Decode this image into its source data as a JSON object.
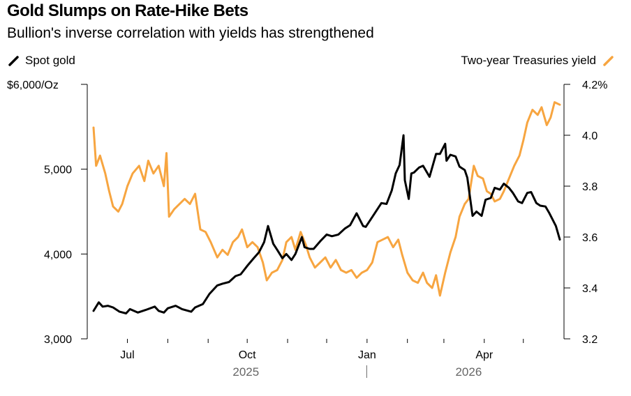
{
  "title": "Gold Slumps on Rate-Hike Bets",
  "subtitle": "Bullion's inverse correlation with yields has strengthened",
  "legend": {
    "left": {
      "label": "Spot gold",
      "color": "#000000",
      "icon": "black-slash-icon"
    },
    "right": {
      "label": "Two-year Treasuries yield",
      "color": "#f7a540",
      "icon": "orange-slash-icon"
    }
  },
  "chart_data": {
    "type": "line",
    "grid": false,
    "legend_position": "top",
    "x_range": [
      "2025-06-05",
      "2026-05-29"
    ],
    "x_ticks": [
      {
        "date": "2025-07-01",
        "label": "Jul"
      },
      {
        "date": "2025-08-01",
        "label": ""
      },
      {
        "date": "2025-09-01",
        "label": ""
      },
      {
        "date": "2025-10-01",
        "label": "Oct"
      },
      {
        "date": "2025-11-01",
        "label": ""
      },
      {
        "date": "2025-12-01",
        "label": ""
      },
      {
        "date": "2026-01-01",
        "label": "Jan"
      },
      {
        "date": "2026-02-01",
        "label": ""
      },
      {
        "date": "2026-03-01",
        "label": ""
      },
      {
        "date": "2026-04-01",
        "label": "Apr"
      },
      {
        "date": "2026-05-01",
        "label": ""
      }
    ],
    "year_labels": [
      {
        "date": "2025-09-30",
        "label": "2025"
      },
      {
        "date": "2026-03-20",
        "label": "2026"
      }
    ],
    "year_divider_date": "2026-01-01",
    "y_left": {
      "unit_label": "$6,000/Oz",
      "ticks": [
        3000,
        4000,
        5000,
        6000
      ],
      "tick_labels": [
        "3,000",
        "4,000",
        "5,000",
        ""
      ],
      "range": [
        3000,
        6000
      ]
    },
    "y_right": {
      "ticks": [
        3.2,
        3.4,
        3.6,
        3.8,
        4.0,
        4.2
      ],
      "tick_labels": [
        "3.2",
        "3.4",
        "3.6",
        "3.8",
        "4.0",
        "4.2%"
      ],
      "range": [
        3.2,
        4.2
      ]
    },
    "series": [
      {
        "name": "Spot gold",
        "axis": "left",
        "color": "#000000",
        "points": [
          [
            "2025-06-05",
            3330
          ],
          [
            "2025-06-09",
            3430
          ],
          [
            "2025-06-12",
            3380
          ],
          [
            "2025-06-16",
            3390
          ],
          [
            "2025-06-20",
            3370
          ],
          [
            "2025-06-25",
            3320
          ],
          [
            "2025-06-30",
            3300
          ],
          [
            "2025-07-03",
            3350
          ],
          [
            "2025-07-09",
            3310
          ],
          [
            "2025-07-15",
            3340
          ],
          [
            "2025-07-22",
            3380
          ],
          [
            "2025-07-25",
            3330
          ],
          [
            "2025-07-29",
            3310
          ],
          [
            "2025-08-01",
            3360
          ],
          [
            "2025-08-07",
            3390
          ],
          [
            "2025-08-12",
            3350
          ],
          [
            "2025-08-19",
            3320
          ],
          [
            "2025-08-22",
            3370
          ],
          [
            "2025-08-28",
            3410
          ],
          [
            "2025-09-02",
            3530
          ],
          [
            "2025-09-08",
            3630
          ],
          [
            "2025-09-12",
            3650
          ],
          [
            "2025-09-17",
            3670
          ],
          [
            "2025-09-22",
            3740
          ],
          [
            "2025-09-26",
            3760
          ],
          [
            "2025-10-01",
            3860
          ],
          [
            "2025-10-06",
            3950
          ],
          [
            "2025-10-10",
            4020
          ],
          [
            "2025-10-14",
            4140
          ],
          [
            "2025-10-17",
            4330
          ],
          [
            "2025-10-21",
            4120
          ],
          [
            "2025-10-24",
            4050
          ],
          [
            "2025-10-28",
            3950
          ],
          [
            "2025-10-31",
            4000
          ],
          [
            "2025-11-04",
            3930
          ],
          [
            "2025-11-07",
            4000
          ],
          [
            "2025-11-12",
            4200
          ],
          [
            "2025-11-14",
            4080
          ],
          [
            "2025-11-18",
            4060
          ],
          [
            "2025-11-21",
            4060
          ],
          [
            "2025-11-26",
            4150
          ],
          [
            "2025-12-01",
            4230
          ],
          [
            "2025-12-05",
            4210
          ],
          [
            "2025-12-10",
            4230
          ],
          [
            "2025-12-15",
            4300
          ],
          [
            "2025-12-19",
            4340
          ],
          [
            "2025-12-24",
            4480
          ],
          [
            "2025-12-29",
            4330
          ],
          [
            "2025-12-31",
            4320
          ],
          [
            "2026-01-06",
            4460
          ],
          [
            "2026-01-12",
            4600
          ],
          [
            "2026-01-16",
            4590
          ],
          [
            "2026-01-20",
            4750
          ],
          [
            "2026-01-23",
            4950
          ],
          [
            "2026-01-26",
            5050
          ],
          [
            "2026-01-29",
            5400
          ],
          [
            "2026-01-30",
            4870
          ],
          [
            "2026-02-02",
            4650
          ],
          [
            "2026-02-04",
            4950
          ],
          [
            "2026-02-06",
            4960
          ],
          [
            "2026-02-10",
            5020
          ],
          [
            "2026-02-13",
            5040
          ],
          [
            "2026-02-18",
            4910
          ],
          [
            "2026-02-23",
            5180
          ],
          [
            "2026-02-26",
            5180
          ],
          [
            "2026-03-02",
            5300
          ],
          [
            "2026-03-03",
            5100
          ],
          [
            "2026-03-06",
            5170
          ],
          [
            "2026-03-10",
            5150
          ],
          [
            "2026-03-13",
            5030
          ],
          [
            "2026-03-17",
            4990
          ],
          [
            "2026-03-19",
            4900
          ],
          [
            "2026-03-23",
            4450
          ],
          [
            "2026-03-26",
            4500
          ],
          [
            "2026-03-30",
            4450
          ],
          [
            "2026-04-02",
            4640
          ],
          [
            "2026-04-06",
            4660
          ],
          [
            "2026-04-09",
            4780
          ],
          [
            "2026-04-13",
            4760
          ],
          [
            "2026-04-16",
            4830
          ],
          [
            "2026-04-20",
            4780
          ],
          [
            "2026-04-23",
            4720
          ],
          [
            "2026-04-27",
            4620
          ],
          [
            "2026-04-30",
            4600
          ],
          [
            "2026-05-04",
            4720
          ],
          [
            "2026-05-07",
            4730
          ],
          [
            "2026-05-11",
            4600
          ],
          [
            "2026-05-14",
            4570
          ],
          [
            "2026-05-18",
            4560
          ],
          [
            "2026-05-21",
            4480
          ],
          [
            "2026-05-26",
            4330
          ],
          [
            "2026-05-29",
            4170
          ]
        ]
      },
      {
        "name": "Two-year Treasuries yield",
        "axis": "right",
        "color": "#f7a540",
        "points": [
          [
            "2025-06-05",
            4.03
          ],
          [
            "2025-06-07",
            3.88
          ],
          [
            "2025-06-10",
            3.92
          ],
          [
            "2025-06-14",
            3.85
          ],
          [
            "2025-06-17",
            3.78
          ],
          [
            "2025-06-20",
            3.72
          ],
          [
            "2025-06-24",
            3.7
          ],
          [
            "2025-06-27",
            3.73
          ],
          [
            "2025-07-01",
            3.8
          ],
          [
            "2025-07-05",
            3.85
          ],
          [
            "2025-07-10",
            3.88
          ],
          [
            "2025-07-14",
            3.82
          ],
          [
            "2025-07-17",
            3.9
          ],
          [
            "2025-07-21",
            3.85
          ],
          [
            "2025-07-25",
            3.88
          ],
          [
            "2025-07-29",
            3.8
          ],
          [
            "2025-07-31",
            3.93
          ],
          [
            "2025-08-02",
            3.68
          ],
          [
            "2025-08-06",
            3.71
          ],
          [
            "2025-08-10",
            3.73
          ],
          [
            "2025-08-14",
            3.75
          ],
          [
            "2025-08-18",
            3.73
          ],
          [
            "2025-08-22",
            3.77
          ],
          [
            "2025-08-26",
            3.63
          ],
          [
            "2025-08-30",
            3.62
          ],
          [
            "2025-09-03",
            3.58
          ],
          [
            "2025-09-08",
            3.52
          ],
          [
            "2025-09-12",
            3.55
          ],
          [
            "2025-09-16",
            3.53
          ],
          [
            "2025-09-20",
            3.58
          ],
          [
            "2025-09-24",
            3.6
          ],
          [
            "2025-09-27",
            3.63
          ],
          [
            "2025-10-01",
            3.56
          ],
          [
            "2025-10-05",
            3.58
          ],
          [
            "2025-10-09",
            3.56
          ],
          [
            "2025-10-13",
            3.5
          ],
          [
            "2025-10-16",
            3.43
          ],
          [
            "2025-10-20",
            3.46
          ],
          [
            "2025-10-24",
            3.47
          ],
          [
            "2025-10-28",
            3.51
          ],
          [
            "2025-10-31",
            3.58
          ],
          [
            "2025-11-04",
            3.6
          ],
          [
            "2025-11-07",
            3.55
          ],
          [
            "2025-11-11",
            3.62
          ],
          [
            "2025-11-15",
            3.57
          ],
          [
            "2025-11-18",
            3.52
          ],
          [
            "2025-11-22",
            3.48
          ],
          [
            "2025-11-26",
            3.5
          ],
          [
            "2025-11-30",
            3.52
          ],
          [
            "2025-12-04",
            3.48
          ],
          [
            "2025-12-08",
            3.51
          ],
          [
            "2025-12-12",
            3.47
          ],
          [
            "2025-12-16",
            3.46
          ],
          [
            "2025-12-20",
            3.47
          ],
          [
            "2025-12-24",
            3.44
          ],
          [
            "2025-12-28",
            3.46
          ],
          [
            "2026-01-01",
            3.47
          ],
          [
            "2026-01-05",
            3.5
          ],
          [
            "2026-01-09",
            3.58
          ],
          [
            "2026-01-13",
            3.59
          ],
          [
            "2026-01-17",
            3.6
          ],
          [
            "2026-01-21",
            3.56
          ],
          [
            "2026-01-25",
            3.59
          ],
          [
            "2026-01-28",
            3.53
          ],
          [
            "2026-02-01",
            3.46
          ],
          [
            "2026-02-05",
            3.43
          ],
          [
            "2026-02-09",
            3.42
          ],
          [
            "2026-02-13",
            3.46
          ],
          [
            "2026-02-16",
            3.42
          ],
          [
            "2026-02-20",
            3.4
          ],
          [
            "2026-02-23",
            3.45
          ],
          [
            "2026-02-26",
            3.37
          ],
          [
            "2026-03-02",
            3.46
          ],
          [
            "2026-03-06",
            3.54
          ],
          [
            "2026-03-10",
            3.6
          ],
          [
            "2026-03-13",
            3.68
          ],
          [
            "2026-03-17",
            3.73
          ],
          [
            "2026-03-20",
            3.75
          ],
          [
            "2026-03-24",
            3.88
          ],
          [
            "2026-03-27",
            3.84
          ],
          [
            "2026-03-31",
            3.83
          ],
          [
            "2026-04-03",
            3.78
          ],
          [
            "2026-04-06",
            3.77
          ],
          [
            "2026-04-09",
            3.74
          ],
          [
            "2026-04-13",
            3.75
          ],
          [
            "2026-04-16",
            3.78
          ],
          [
            "2026-04-20",
            3.83
          ],
          [
            "2026-04-24",
            3.88
          ],
          [
            "2026-04-28",
            3.92
          ],
          [
            "2026-05-01",
            3.98
          ],
          [
            "2026-05-04",
            4.05
          ],
          [
            "2026-05-08",
            4.1
          ],
          [
            "2026-05-12",
            4.08
          ],
          [
            "2026-05-15",
            4.11
          ],
          [
            "2026-05-19",
            4.04
          ],
          [
            "2026-05-22",
            4.07
          ],
          [
            "2026-05-25",
            4.13
          ],
          [
            "2026-05-29",
            4.12
          ]
        ]
      }
    ]
  }
}
